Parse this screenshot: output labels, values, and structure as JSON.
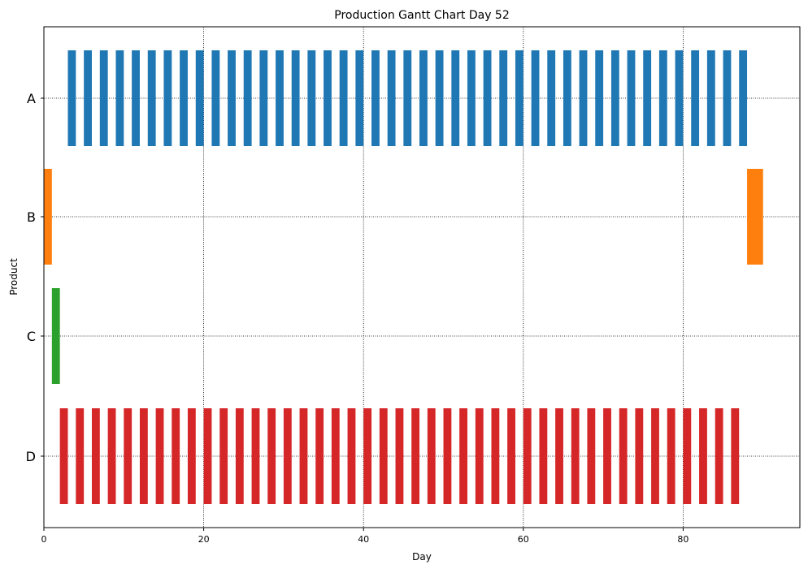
{
  "chart_data": {
    "type": "gantt",
    "title": "Production Gantt Chart Day 52",
    "xlabel": "Day",
    "ylabel": "Product",
    "xlim": [
      0,
      94.6
    ],
    "xticks": [
      0,
      20,
      40,
      60,
      80
    ],
    "categories": [
      "A",
      "B",
      "C",
      "D"
    ],
    "grid": true,
    "grid_style": "dotted",
    "series": [
      {
        "name": "A",
        "color": "#1f77b4",
        "bar_width_days": 1,
        "starts": [
          3,
          5,
          7,
          9,
          11,
          13,
          15,
          17,
          19,
          21,
          23,
          25,
          27,
          29,
          31,
          33,
          35,
          37,
          39,
          41,
          43,
          45,
          47,
          49,
          51,
          53,
          55,
          57,
          59,
          61,
          63,
          65,
          67,
          69,
          71,
          73,
          75,
          77,
          79,
          81,
          83,
          85,
          87
        ]
      },
      {
        "name": "B",
        "color": "#ff7f0e",
        "bar_width_days": 1,
        "starts": [
          0
        ],
        "extra_bars": [
          {
            "start": 88,
            "duration": 2
          }
        ]
      },
      {
        "name": "C",
        "color": "#2ca02c",
        "bar_width_days": 1,
        "starts": [
          1
        ]
      },
      {
        "name": "D",
        "color": "#d62728",
        "bar_width_days": 1,
        "starts": [
          2,
          4,
          6,
          8,
          10,
          12,
          14,
          16,
          18,
          20,
          22,
          24,
          26,
          28,
          30,
          32,
          34,
          36,
          38,
          40,
          42,
          44,
          46,
          48,
          50,
          52,
          54,
          56,
          58,
          60,
          62,
          64,
          66,
          68,
          70,
          72,
          74,
          76,
          78,
          80,
          82,
          84,
          86
        ]
      }
    ]
  }
}
